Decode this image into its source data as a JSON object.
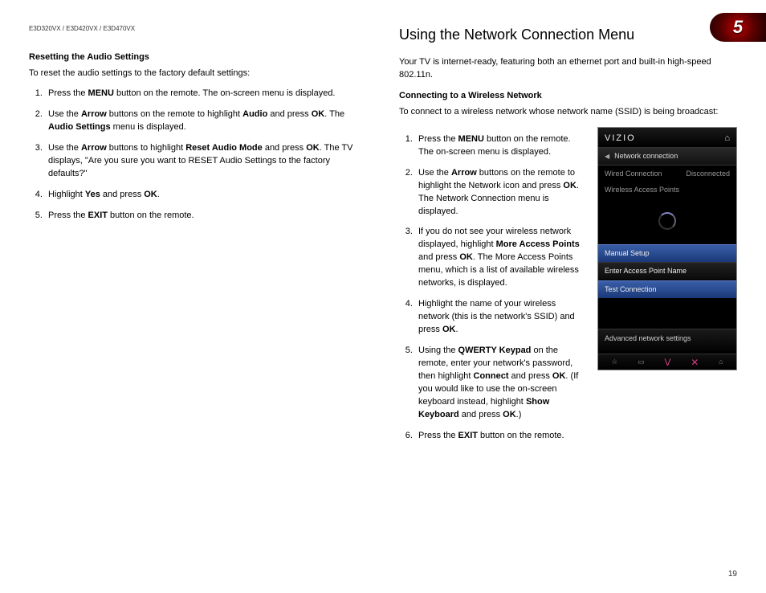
{
  "header": {
    "models": "E3D320VX / E3D420VX / E3D470VX",
    "chapter_number": "5",
    "page_number": "19"
  },
  "left": {
    "subhead": "Resetting the Audio Settings",
    "lead": "To reset the audio settings to the factory default settings:",
    "steps": [
      "Press the <b>MENU</b> button on the remote. The on-screen menu is displayed.",
      "Use the <b>Arrow</b> buttons on the remote to highlight <b>Audio</b> and press <b>OK</b>. The <b>Audio Settings</b> menu is displayed.",
      "Use the <b>Arrow</b> buttons to highlight <b>Reset Audio Mode</b> and press <b>OK</b>. The TV displays, \"Are you sure you want to RESET Audio Settings to the factory defaults?\"",
      "Highlight <b>Yes</b> and press <b>OK</b>.",
      "Press the <b>EXIT</b> button on the remote."
    ]
  },
  "right": {
    "title": "Using the Network Connection Menu",
    "intro": "Your TV is internet-ready, featuring both an ethernet port and built-in high-speed 802.11n.",
    "subhead": "Connecting to a Wireless Network",
    "lead": "To connect to a wireless network whose network name (SSID) is being broadcast:",
    "steps": [
      "Press the <b>MENU</b> button on the remote. The on-screen menu is displayed.",
      "Use the <b>Arrow</b> buttons on the remote to highlight the Network icon and press <b>OK</b>. The Network Connection menu is displayed.",
      "If you do not see your wireless network displayed, highlight <b>More Access Points</b> and press <b>OK</b>. The More Access Points menu, which is a list of available wireless networks, is displayed.",
      "Highlight the name of your wireless network (this is the network's SSID) and press <b>OK</b>.",
      "Using the <b>QWERTY Keypad</b> on the remote, enter your network's password, then highlight <b>Connect</b> and press <b>OK</b>. (If you would like to use the on-screen keyboard instead, highlight <b>Show Keyboard</b> and press <b>OK</b>.)",
      "Press the <b>EXIT</b> button on the remote."
    ]
  },
  "tv": {
    "brand": "VIZIO",
    "nav_title": "Network connection",
    "wired_label": "Wired Connection",
    "wired_status": "Disconnected",
    "wap_label": "Wireless Access Points",
    "manual_setup": "Manual Setup",
    "enter_ap": "Enter Access Point Name",
    "test_conn": "Test Connection",
    "advanced": "Advanced network settings",
    "footer_icons": [
      "☆",
      "▭",
      "V",
      "✕",
      "⌂"
    ]
  }
}
